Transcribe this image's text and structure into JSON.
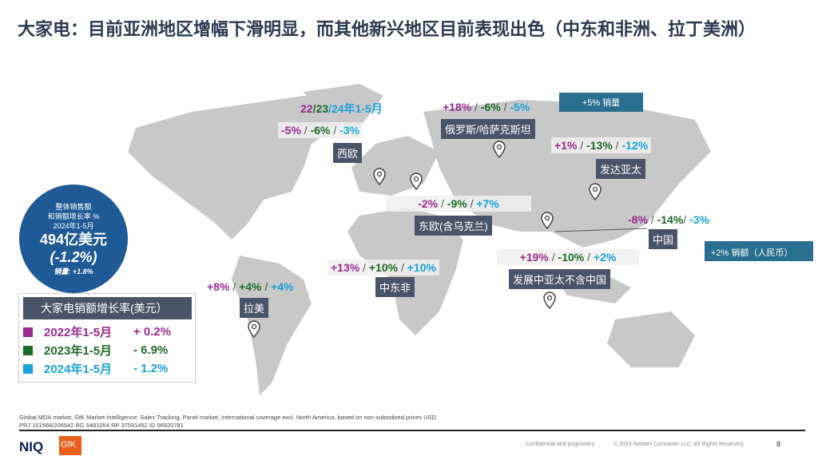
{
  "title": "大家电：目前亚洲地区增幅下滑明显，而其他新兴地区目前表现出色（中东和非洲、拉丁美洲）",
  "colors": {
    "y2022": "#9b2a8e",
    "y2023": "#1e6b2a",
    "y2024": "#1aa0d8",
    "bubble": "#1f5a96",
    "label_bg": "#4a5468",
    "callout": "#2a6f8f"
  },
  "header": {
    "y22": "22",
    "y23": "23",
    "y24": "24年1-5月",
    "sep": "/"
  },
  "regions": [
    {
      "name": "西欧",
      "v": [
        "-5%",
        "-6%",
        "-3%"
      ]
    },
    {
      "name": "俄罗斯/哈萨克斯坦",
      "v": [
        "+18%",
        "-6%",
        "-5%"
      ]
    },
    {
      "name": "发达亚太",
      "v": [
        "+1%",
        "-13%",
        "-12%"
      ]
    },
    {
      "name": "东欧(含乌克兰)",
      "v": [
        "-2%",
        "-9%",
        "+7%"
      ]
    },
    {
      "name": "中国",
      "v": [
        "-8%",
        "-14%",
        "-3%"
      ]
    },
    {
      "name": "中东非",
      "v": [
        "+13%",
        "+10%",
        "+10%"
      ]
    },
    {
      "name": "发展中亚太不含中国",
      "v": [
        "+19%",
        "-10%",
        "+2%"
      ]
    },
    {
      "name": "拉美",
      "v": [
        "+8%",
        "+4%",
        "+4%"
      ]
    }
  ],
  "callouts": {
    "russia": "+5% 销量",
    "china": "+2% 销额（人民币）"
  },
  "bubble": {
    "l1": "整体销售额",
    "l2": "和销额增长率 %",
    "l3": "2024年1-5月",
    "value": "494亿美元",
    "pct": "(-1.2%)",
    "vol": "销量: +1.8%"
  },
  "legend": {
    "title": "大家电销额增长率(美元）",
    "rows": [
      {
        "year": "2022年1-5月",
        "value": "+ 0.2%"
      },
      {
        "year": "2023年1-5月",
        "value": "- 6.9%"
      },
      {
        "year": "2024年1-5月",
        "value": "- 1.2%"
      }
    ]
  },
  "footer": {
    "source": "Global MDA market;  GfK Market Intelligence: Sales Tracking, Panel market, International coverage excl. North America, based on non-subsidized prices USD",
    "ids": "PRJ 101566/206542   RG 5481054   RP 37591452   ID 56920781",
    "confidential": "Confidential and proprietary",
    "copyright": "© 2024 Nielsen Consumer LLC. All Rights Reserved.",
    "page": "8",
    "logo_niq": "NIQ",
    "logo_gfk": "GfK"
  }
}
